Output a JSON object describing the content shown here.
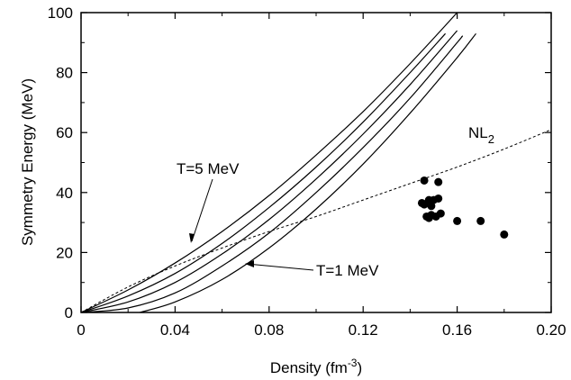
{
  "chart_data": {
    "type": "line",
    "xlabel": {
      "main": "Density (fm",
      "sup": "-3",
      "tail": ")"
    },
    "ylabel": "Symmetry Energy (MeV)",
    "xlim": [
      0,
      0.2
    ],
    "ylim": [
      0,
      100
    ],
    "xticks": [
      "0",
      "0.04",
      "0.08",
      "0.12",
      "0.16",
      "0.20"
    ],
    "yticks": [
      "0",
      "20",
      "40",
      "60",
      "80",
      "100"
    ],
    "series": [
      {
        "style": "solid",
        "x": [
          0,
          0.02,
          0.04,
          0.06,
          0.08,
          0.1,
          0.12,
          0.14,
          0.16
        ],
        "y": [
          0,
          7.5,
          16.5,
          27,
          39,
          52.5,
          67,
          83,
          100
        ]
      },
      {
        "style": "solid",
        "x": [
          0,
          0.02,
          0.04,
          0.06,
          0.08,
          0.1,
          0.12,
          0.14,
          0.155
        ],
        "y": [
          0,
          5.5,
          13,
          23,
          35,
          48.5,
          63.5,
          80,
          93
        ]
      },
      {
        "style": "solid",
        "x": [
          0,
          0.02,
          0.04,
          0.06,
          0.08,
          0.1,
          0.12,
          0.14,
          0.16
        ],
        "y": [
          0,
          3.5,
          10,
          19.5,
          31,
          44.5,
          59.5,
          76,
          94
        ]
      },
      {
        "style": "solid",
        "x": [
          0,
          0.02,
          0.04,
          0.06,
          0.08,
          0.1,
          0.12,
          0.14,
          0.16,
          0.162
        ],
        "y": [
          0,
          1.5,
          6.5,
          15.5,
          26.5,
          40,
          55,
          71.5,
          90,
          92
        ]
      },
      {
        "style": "solid",
        "x": [
          0.025,
          0.04,
          0.06,
          0.08,
          0.1,
          0.12,
          0.14,
          0.16,
          0.168
        ],
        "y": [
          0,
          3.5,
          11,
          21.5,
          34.5,
          49.5,
          66.5,
          85,
          93
        ]
      },
      {
        "name": "NL2",
        "style": "dashed",
        "x": [
          0,
          0.02,
          0.04,
          0.06,
          0.08,
          0.1,
          0.12,
          0.14,
          0.16,
          0.18,
          0.2
        ],
        "y": [
          0,
          8.5,
          15.5,
          21.5,
          27,
          32,
          37.5,
          43,
          48.5,
          54.5,
          61
        ]
      }
    ],
    "points": [
      {
        "x": 0.146,
        "y": 44
      },
      {
        "x": 0.152,
        "y": 43.5
      },
      {
        "x": 0.145,
        "y": 36.5
      },
      {
        "x": 0.148,
        "y": 37.5
      },
      {
        "x": 0.15,
        "y": 37.5
      },
      {
        "x": 0.152,
        "y": 38
      },
      {
        "x": 0.146,
        "y": 36
      },
      {
        "x": 0.149,
        "y": 35.5
      },
      {
        "x": 0.147,
        "y": 32
      },
      {
        "x": 0.149,
        "y": 32.5
      },
      {
        "x": 0.151,
        "y": 32
      },
      {
        "x": 0.153,
        "y": 33
      },
      {
        "x": 0.148,
        "y": 31.5
      },
      {
        "x": 0.16,
        "y": 30.5
      },
      {
        "x": 0.17,
        "y": 30.5
      },
      {
        "x": 0.18,
        "y": 26
      }
    ],
    "annotations": {
      "t5": "T=5 MeV",
      "t1": "T=1 MeV",
      "nl2_main": "NL",
      "nl2_sub": "2"
    }
  }
}
